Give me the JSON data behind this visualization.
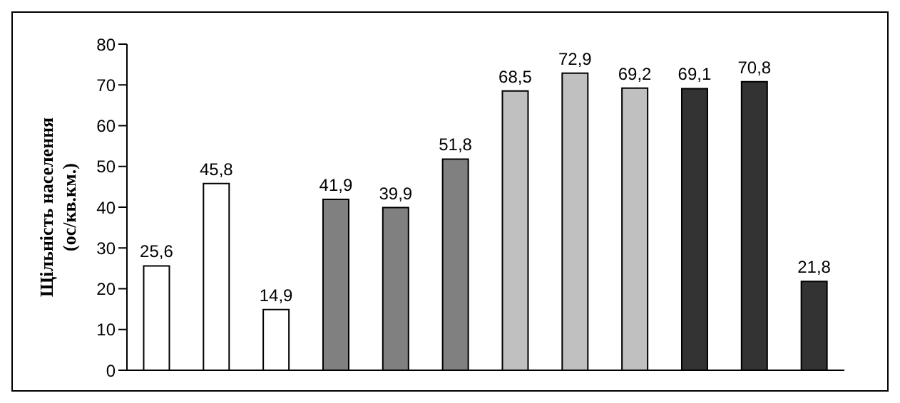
{
  "chart_data": {
    "type": "bar",
    "ylabel": "Щільність населення (ос/кв.км.)",
    "categories": [
      null,
      null,
      null,
      null,
      null,
      null,
      null,
      null,
      null,
      null,
      null,
      null
    ],
    "values": [
      25.6,
      45.8,
      14.9,
      41.9,
      39.9,
      51.8,
      68.5,
      72.9,
      69.2,
      69.1,
      70.8,
      21.8
    ],
    "colors": [
      "#ffffff",
      "#ffffff",
      "#ffffff",
      "#808080",
      "#808080",
      "#808080",
      "#c0c0c0",
      "#c0c0c0",
      "#c0c0c0",
      "#333333",
      "#333333",
      "#333333"
    ],
    "value_labels": [
      "25,6",
      "45,8",
      "14,9",
      "41,9",
      "39,9",
      "51,8",
      "68,5",
      "72,9",
      "69,2",
      "69,1",
      "70,8",
      "21,8"
    ],
    "ylim": [
      0,
      80
    ],
    "yticks": [
      0,
      10,
      20,
      30,
      40,
      50,
      60,
      70,
      80
    ],
    "grid": false,
    "legend": false
  }
}
